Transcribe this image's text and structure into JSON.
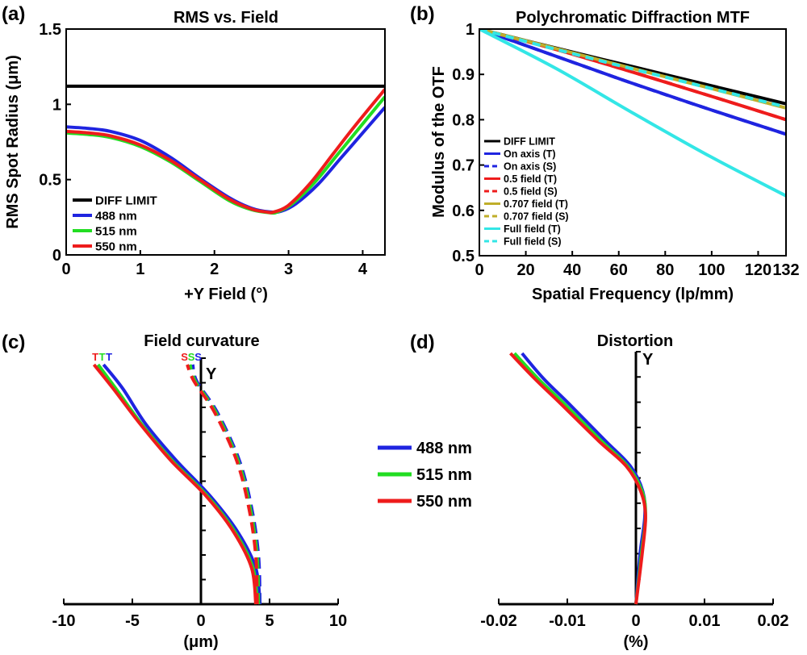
{
  "colors": {
    "black": "#000000",
    "blue": "#1f24e0",
    "green": "#22dd22",
    "red": "#ee1c1c",
    "olive": "#bfae2a",
    "cyan": "#33e6e6"
  },
  "legend_shared": [
    {
      "name": "488 nm",
      "color": "#1f24e0"
    },
    {
      "name": "515 nm",
      "color": "#22dd22"
    },
    {
      "name": "550 nm",
      "color": "#ee1c1c"
    }
  ],
  "chart_data": [
    {
      "panel": "(a)",
      "type": "line",
      "title": "RMS vs. Field",
      "xlabel": "+Y Field (°)",
      "ylabel": "RMS Spot Radius (μm)",
      "xlim": [
        0,
        4.3
      ],
      "ylim": [
        0,
        1.5
      ],
      "xticks": [
        0,
        1,
        2,
        3,
        4
      ],
      "yticks": [
        0,
        0.5,
        1,
        1.5
      ],
      "xtick_labels": [
        "0",
        "1",
        "2",
        "3",
        "4"
      ],
      "ytick_labels": [
        "0",
        "0.5",
        "1",
        "1.5"
      ],
      "legend_position": "lower-left",
      "series": [
        {
          "name": "DIFF LIMIT",
          "color": "#000000",
          "dash": false,
          "x": [
            0,
            4.3
          ],
          "y": [
            1.12,
            1.12
          ]
        },
        {
          "name": "488 nm",
          "color": "#1f24e0",
          "dash": false,
          "x": [
            0,
            0.3,
            0.6,
            1.0,
            1.4,
            1.8,
            2.2,
            2.5,
            2.75,
            2.9,
            3.1,
            3.4,
            3.7,
            4.0,
            4.3
          ],
          "y": [
            0.85,
            0.84,
            0.82,
            0.76,
            0.65,
            0.51,
            0.38,
            0.31,
            0.285,
            0.29,
            0.34,
            0.47,
            0.64,
            0.81,
            0.98
          ]
        },
        {
          "name": "515 nm",
          "color": "#22dd22",
          "dash": false,
          "x": [
            0,
            0.3,
            0.6,
            1.0,
            1.4,
            1.8,
            2.2,
            2.5,
            2.75,
            2.85,
            3.05,
            3.35,
            3.65,
            3.95,
            4.3
          ],
          "y": [
            0.81,
            0.8,
            0.78,
            0.72,
            0.62,
            0.49,
            0.36,
            0.3,
            0.28,
            0.285,
            0.34,
            0.48,
            0.66,
            0.84,
            1.05
          ]
        },
        {
          "name": "550 nm",
          "color": "#ee1c1c",
          "dash": false,
          "x": [
            0,
            0.3,
            0.6,
            1.0,
            1.4,
            1.8,
            2.2,
            2.5,
            2.7,
            2.8,
            3.0,
            3.3,
            3.6,
            3.9,
            4.3
          ],
          "y": [
            0.82,
            0.81,
            0.79,
            0.73,
            0.63,
            0.5,
            0.37,
            0.305,
            0.285,
            0.285,
            0.33,
            0.48,
            0.67,
            0.86,
            1.1
          ]
        }
      ]
    },
    {
      "panel": "(b)",
      "type": "line",
      "title": "Polychromatic Diffraction MTF",
      "xlabel": "Spatial Frequency (lp/mm)",
      "ylabel": "Modulus of the OTF",
      "xlim": [
        0,
        132
      ],
      "ylim": [
        0.5,
        1
      ],
      "xticks": [
        0,
        20,
        40,
        60,
        80,
        100,
        120,
        132
      ],
      "yticks": [
        0.5,
        0.6,
        0.7,
        0.8,
        0.9,
        1
      ],
      "xtick_labels": [
        "0",
        "20",
        "40",
        "60",
        "80",
        "100",
        "120",
        "132"
      ],
      "ytick_labels": [
        "0.5",
        "0.6",
        "0.7",
        "0.8",
        "0.9",
        "1"
      ],
      "legend_position": "lower-left",
      "series": [
        {
          "name": "DIFF LIMIT",
          "color": "#000000",
          "dash": false,
          "x": [
            0,
            33,
            66,
            99,
            132
          ],
          "y": [
            1,
            0.958,
            0.917,
            0.876,
            0.835
          ]
        },
        {
          "name": "On axis (T)",
          "color": "#1f24e0",
          "dash": false,
          "x": [
            0,
            33,
            66,
            99,
            132
          ],
          "y": [
            1,
            0.94,
            0.88,
            0.823,
            0.768
          ]
        },
        {
          "name": "On axis (S)",
          "color": "#1f24e0",
          "dash": true,
          "x": [
            0,
            33,
            66,
            99,
            132
          ],
          "y": [
            1,
            0.94,
            0.88,
            0.823,
            0.768
          ]
        },
        {
          "name": "0.5 field (T)",
          "color": "#ee1c1c",
          "dash": false,
          "x": [
            0,
            33,
            66,
            99,
            132
          ],
          "y": [
            1,
            0.955,
            0.905,
            0.853,
            0.8
          ]
        },
        {
          "name": "0.5 field (S)",
          "color": "#ee1c1c",
          "dash": true,
          "x": [
            0,
            33,
            66,
            99,
            132
          ],
          "y": [
            1,
            0.955,
            0.905,
            0.853,
            0.8
          ]
        },
        {
          "name": "0.707 field (T)",
          "color": "#bfae2a",
          "dash": false,
          "x": [
            0,
            33,
            66,
            99,
            132
          ],
          "y": [
            1,
            0.957,
            0.913,
            0.87,
            0.826
          ]
        },
        {
          "name": "0.707 field (S)",
          "color": "#bfae2a",
          "dash": true,
          "x": [
            0,
            33,
            66,
            99,
            132
          ],
          "y": [
            1,
            0.957,
            0.913,
            0.87,
            0.826
          ]
        },
        {
          "name": "Full field (T)",
          "color": "#33e6e6",
          "dash": false,
          "x": [
            0,
            33,
            66,
            99,
            132
          ],
          "y": [
            1,
            0.913,
            0.815,
            0.72,
            0.632
          ]
        },
        {
          "name": "Full field (S)",
          "color": "#33e6e6",
          "dash": true,
          "x": [
            0,
            33,
            66,
            99,
            132
          ],
          "y": [
            1,
            0.955,
            0.912,
            0.87,
            0.828
          ]
        }
      ]
    },
    {
      "panel": "(c)",
      "type": "line",
      "title": "Field curvature",
      "xlabel": "(μm)",
      "axis_label": "Y",
      "xlim": [
        -10,
        10
      ],
      "ylim": [
        0,
        1
      ],
      "xticks": [
        -10,
        -5,
        0,
        5,
        10
      ],
      "xtick_labels": [
        "-10",
        "-5",
        "0",
        "5",
        "10"
      ],
      "curve_markers": [
        {
          "text": "T",
          "color": "#ee1c1c",
          "x": -7.7
        },
        {
          "text": "T",
          "color": "#22dd22",
          "x": -7.2
        },
        {
          "text": "T",
          "color": "#1f24e0",
          "x": -6.7
        },
        {
          "text": "S",
          "color": "#ee1c1c",
          "x": -1.2
        },
        {
          "text": "S",
          "color": "#22dd22",
          "x": -0.7
        },
        {
          "text": "S",
          "color": "#1f24e0",
          "x": -0.2
        }
      ],
      "series": [
        {
          "name": "488 nm (T)",
          "color": "#1f24e0",
          "dash": false,
          "y": [
            0,
            0.15,
            0.3,
            0.45,
            0.6,
            0.75,
            0.9,
            1.0
          ],
          "x": [
            4.3,
            4.0,
            2.7,
            0.7,
            -1.8,
            -4.0,
            -5.7,
            -7.1
          ]
        },
        {
          "name": "515 nm (T)",
          "color": "#22dd22",
          "dash": false,
          "y": [
            0,
            0.15,
            0.3,
            0.45,
            0.6,
            0.75,
            0.9,
            1.0
          ],
          "x": [
            4.1,
            3.8,
            2.5,
            0.5,
            -2.1,
            -4.3,
            -6.2,
            -7.5
          ]
        },
        {
          "name": "550 nm (T)",
          "color": "#ee1c1c",
          "dash": false,
          "y": [
            0,
            0.15,
            0.3,
            0.45,
            0.6,
            0.75,
            0.9,
            1.0
          ],
          "x": [
            4.0,
            3.7,
            2.4,
            0.4,
            -2.2,
            -4.4,
            -6.4,
            -7.8
          ]
        },
        {
          "name": "488 nm (S)",
          "color": "#1f24e0",
          "dash": true,
          "y": [
            0,
            0.2,
            0.4,
            0.6,
            0.8,
            0.93,
            1.0
          ],
          "x": [
            4.3,
            4.2,
            3.7,
            2.8,
            1.2,
            -0.3,
            -0.6
          ]
        },
        {
          "name": "515 nm (S)",
          "color": "#22dd22",
          "dash": true,
          "y": [
            0,
            0.2,
            0.4,
            0.6,
            0.8,
            0.93,
            1.0
          ],
          "x": [
            4.2,
            4.1,
            3.6,
            2.7,
            1.1,
            -0.4,
            -0.8
          ]
        },
        {
          "name": "550 nm (S)",
          "color": "#ee1c1c",
          "dash": true,
          "y": [
            0,
            0.2,
            0.4,
            0.6,
            0.8,
            0.93,
            1.0
          ],
          "x": [
            4.1,
            4.0,
            3.5,
            2.6,
            1.0,
            -0.5,
            -1.0
          ]
        }
      ]
    },
    {
      "panel": "(d)",
      "type": "line",
      "title": "Distortion",
      "xlabel": "(%)",
      "axis_label": "Y",
      "xlim": [
        -0.02,
        0.02
      ],
      "ylim": [
        0,
        1
      ],
      "xticks": [
        -0.02,
        -0.01,
        0,
        0.01,
        0.02
      ],
      "xtick_labels": [
        "-0.02",
        "-0.01",
        "0",
        "0.01",
        "0.02"
      ],
      "series": [
        {
          "name": "488 nm",
          "color": "#1f24e0",
          "dash": false,
          "y": [
            0,
            0.2,
            0.35,
            0.45,
            0.55,
            0.65,
            0.8,
            0.9,
            1.0
          ],
          "x": [
            0,
            0.0006,
            0.0013,
            0.001,
            -0.0008,
            -0.0044,
            -0.0098,
            -0.0135,
            -0.0166
          ]
        },
        {
          "name": "515 nm",
          "color": "#22dd22",
          "dash": false,
          "y": [
            0,
            0.2,
            0.35,
            0.45,
            0.55,
            0.65,
            0.8,
            0.9,
            1.0
          ],
          "x": [
            0,
            0.0008,
            0.0014,
            0.0009,
            -0.0012,
            -0.005,
            -0.0105,
            -0.0143,
            -0.0177
          ]
        },
        {
          "name": "550 nm",
          "color": "#ee1c1c",
          "dash": false,
          "y": [
            0,
            0.2,
            0.35,
            0.45,
            0.55,
            0.65,
            0.8,
            0.9,
            1.0
          ],
          "x": [
            0,
            0.0009,
            0.0014,
            0.0007,
            -0.0014,
            -0.0054,
            -0.011,
            -0.0148,
            -0.0183
          ]
        }
      ]
    }
  ]
}
